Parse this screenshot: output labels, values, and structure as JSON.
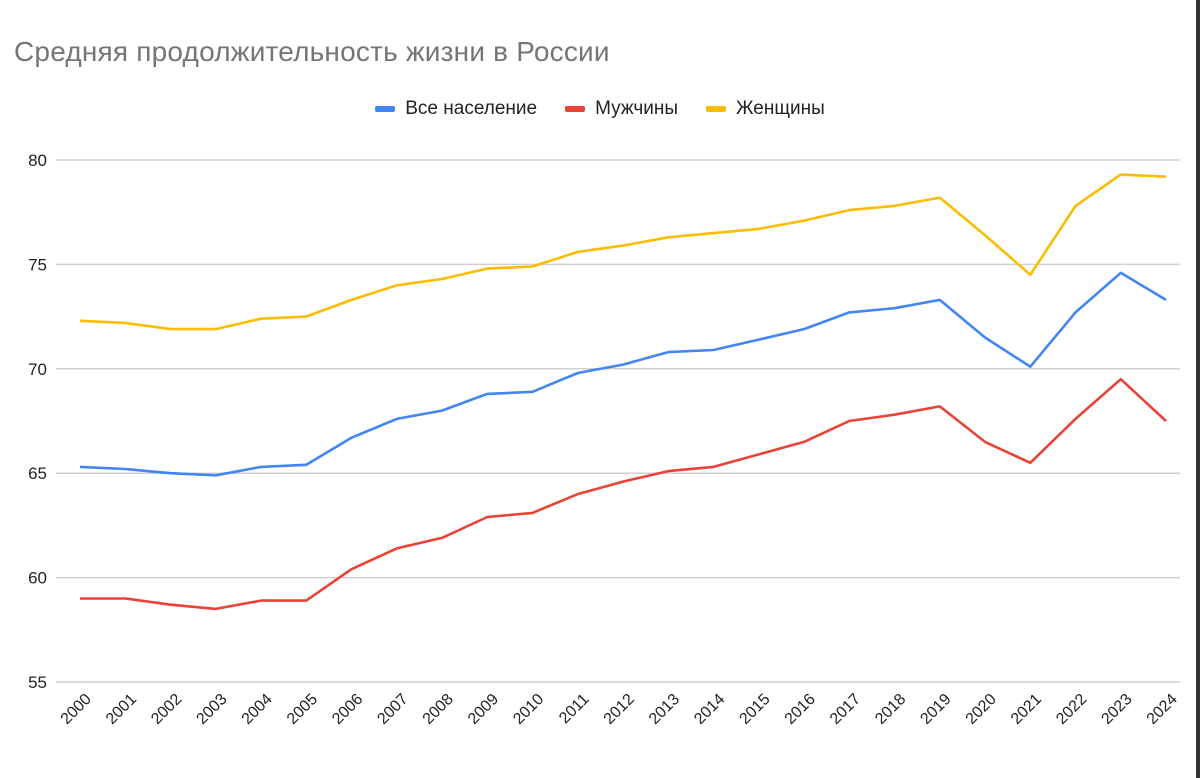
{
  "chart_data": {
    "type": "line",
    "title": "Средняя продолжительность жизни в России",
    "xlabel": "",
    "ylabel": "",
    "ylim": [
      55,
      80
    ],
    "yticks": [
      55,
      60,
      65,
      70,
      75,
      80
    ],
    "grid": true,
    "legend_position": "top",
    "x": [
      "2000",
      "2001",
      "2002",
      "2003",
      "2004",
      "2005",
      "2006",
      "2007",
      "2008",
      "2009",
      "2010",
      "2011",
      "2012",
      "2013",
      "2014",
      "2015",
      "2016",
      "2017",
      "2018",
      "2019",
      "2020",
      "2021",
      "2022",
      "2023",
      "2024"
    ],
    "series": [
      {
        "name": "Все население",
        "color": "#4285f4",
        "values": [
          65.3,
          65.2,
          65.0,
          64.9,
          65.3,
          65.4,
          66.7,
          67.6,
          68.0,
          68.8,
          68.9,
          69.8,
          70.2,
          70.8,
          70.9,
          71.4,
          71.9,
          72.7,
          72.9,
          73.3,
          71.5,
          70.1,
          72.7,
          74.6,
          73.3
        ]
      },
      {
        "name": "Мужчины",
        "color": "#ea4335",
        "values": [
          59.0,
          59.0,
          58.7,
          58.5,
          58.9,
          58.9,
          60.4,
          61.4,
          61.9,
          62.9,
          63.1,
          64.0,
          64.6,
          65.1,
          65.3,
          65.9,
          66.5,
          67.5,
          67.8,
          68.2,
          66.5,
          65.5,
          67.6,
          69.5,
          67.5
        ]
      },
      {
        "name": "Женщины",
        "color": "#fbbc04",
        "values": [
          72.3,
          72.2,
          71.9,
          71.9,
          72.4,
          72.5,
          73.3,
          74.0,
          74.3,
          74.8,
          74.9,
          75.6,
          75.9,
          76.3,
          76.5,
          76.7,
          77.1,
          77.6,
          77.8,
          78.2,
          76.4,
          74.5,
          77.8,
          79.3,
          79.2
        ]
      }
    ]
  },
  "legend": [
    {
      "label": "Все население",
      "color": "#4285f4"
    },
    {
      "label": "Мужчины",
      "color": "#ea4335"
    },
    {
      "label": "Женщины",
      "color": "#fbbc04"
    }
  ]
}
